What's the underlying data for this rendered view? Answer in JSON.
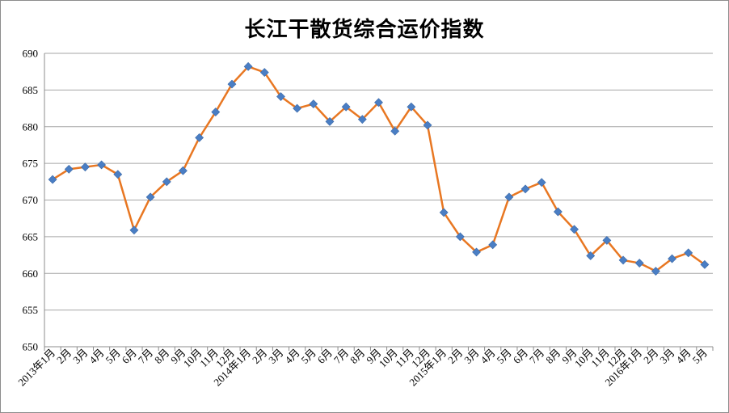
{
  "chart_data": {
    "type": "line",
    "title": "长江干散货综合运价指数",
    "xlabel": "",
    "ylabel": "",
    "ylim": [
      650,
      690
    ],
    "yticks": [
      650,
      655,
      660,
      665,
      670,
      675,
      680,
      685,
      690
    ],
    "grid": true,
    "legend": "none",
    "categories": [
      "2013年1月",
      "2月",
      "3月",
      "4月",
      "5月",
      "6月",
      "7月",
      "8月",
      "9月",
      "10月",
      "11月",
      "12月",
      "2014年1月",
      "2月",
      "3月",
      "4月",
      "5月",
      "6月",
      "7月",
      "8月",
      "9月",
      "10月",
      "11月",
      "12月",
      "2015年1月",
      "2月",
      "3月",
      "4月",
      "5月",
      "6月",
      "7月",
      "8月",
      "9月",
      "10月",
      "11月",
      "12月",
      "2016年1月",
      "2月",
      "3月",
      "4月",
      "5月"
    ],
    "series": [
      {
        "values": [
          672.8,
          674.2,
          674.5,
          674.8,
          673.5,
          665.9,
          670.4,
          672.5,
          674.0,
          678.5,
          682.0,
          685.8,
          688.2,
          687.4,
          684.1,
          682.5,
          683.1,
          680.7,
          682.7,
          681.0,
          683.3,
          679.4,
          682.7,
          680.2,
          668.3,
          665.0,
          662.9,
          663.9,
          670.4,
          671.5,
          672.4,
          668.4,
          666.0,
          662.4,
          664.5,
          661.8,
          661.4,
          660.3,
          662.0,
          662.8,
          661.2
        ]
      }
    ],
    "colors": {
      "line": "#e87722",
      "marker": "#4a7ec4",
      "grid": "#a6a6a6",
      "axis": "#8c8c8c"
    }
  }
}
